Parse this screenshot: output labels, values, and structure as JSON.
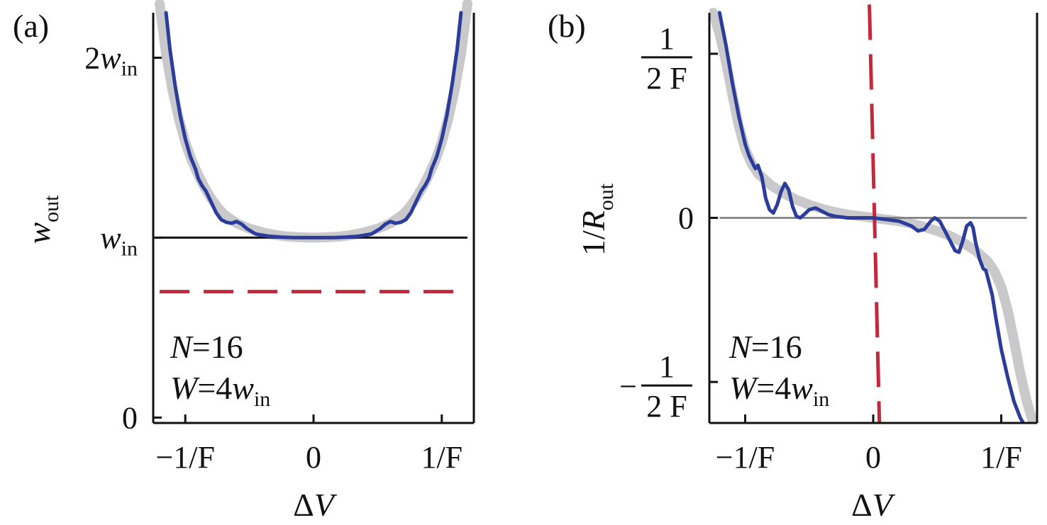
{
  "colors": {
    "fit_curve": "#2b3c9b",
    "smooth_curve": "#c3c3c7",
    "dashed_line": "#c3283d",
    "reference_line": "#111111",
    "reference_line_b": "#777777",
    "axes": "#111111"
  },
  "panels": {
    "a": {
      "label": "(a)",
      "annotation": {
        "n_label": "N=16",
        "w_label": "W=4w_in"
      }
    },
    "b": {
      "label": "(b)",
      "annotation": {
        "n_label": "N=16",
        "w_label": "W=4w_in"
      }
    }
  },
  "chart_data": [
    {
      "type": "line",
      "panel": "(a)",
      "xlabel": "ΔV",
      "ylabel": "w_out",
      "x_units": "1/F",
      "y_units": "w_in",
      "xlim": [
        -1.25,
        1.25
      ],
      "ylim": [
        -0.03,
        2.25
      ],
      "x_ticks": [
        {
          "value": -1,
          "label": "−1/F"
        },
        {
          "value": 0,
          "label": "0"
        },
        {
          "value": 1,
          "label": "1/F"
        }
      ],
      "y_ticks": [
        {
          "value": 0,
          "label": "0"
        },
        {
          "value": 1,
          "label": "w_in"
        },
        {
          "value": 2,
          "label": "2w_in"
        }
      ],
      "series": [
        {
          "role": "smooth-band",
          "x": [
            -1.2,
            -1.15,
            -1.1,
            -1.05,
            -1.0,
            -0.95,
            -0.9,
            -0.85,
            -0.8,
            -0.75,
            -0.7,
            -0.6,
            -0.5,
            -0.4,
            -0.3,
            -0.2,
            -0.1,
            0,
            0.1,
            0.2,
            0.3,
            0.4,
            0.5,
            0.6,
            0.7,
            0.75,
            0.8,
            0.85,
            0.9,
            0.95,
            1.0,
            1.05,
            1.1,
            1.15,
            1.2
          ],
          "y": [
            2.3,
            2.02,
            1.82,
            1.66,
            1.53,
            1.43,
            1.35,
            1.28,
            1.22,
            1.17,
            1.13,
            1.08,
            1.05,
            1.03,
            1.015,
            1.006,
            1.002,
            1.0,
            1.002,
            1.006,
            1.015,
            1.03,
            1.05,
            1.08,
            1.13,
            1.17,
            1.22,
            1.28,
            1.35,
            1.43,
            1.53,
            1.66,
            1.82,
            2.02,
            2.3
          ]
        },
        {
          "role": "oscillating-curve",
          "x": [
            -1.15,
            -1.12,
            -1.08,
            -1.04,
            -1.0,
            -0.96,
            -0.92,
            -0.9,
            -0.87,
            -0.84,
            -0.8,
            -0.76,
            -0.72,
            -0.68,
            -0.64,
            -0.6,
            -0.56,
            -0.52,
            -0.45,
            -0.35,
            -0.25,
            -0.15,
            0,
            0.15,
            0.25,
            0.35,
            0.45,
            0.52,
            0.56,
            0.6,
            0.64,
            0.68,
            0.72,
            0.76,
            0.8,
            0.84,
            0.87,
            0.9,
            0.92,
            0.96,
            1.0,
            1.04,
            1.08,
            1.12,
            1.15
          ],
          "y": [
            2.25,
            2.05,
            1.85,
            1.68,
            1.55,
            1.45,
            1.38,
            1.33,
            1.29,
            1.26,
            1.2,
            1.14,
            1.1,
            1.085,
            1.08,
            1.09,
            1.075,
            1.05,
            1.02,
            1.008,
            1.003,
            1.0,
            1.0,
            1.0,
            1.003,
            1.008,
            1.02,
            1.05,
            1.075,
            1.09,
            1.08,
            1.085,
            1.1,
            1.14,
            1.2,
            1.26,
            1.29,
            1.33,
            1.38,
            1.45,
            1.55,
            1.68,
            1.85,
            2.05,
            2.25
          ]
        },
        {
          "role": "reference-line",
          "x": [
            -1.2,
            1.2
          ],
          "y": [
            1,
            1
          ]
        },
        {
          "role": "dashed-line",
          "x": [
            -1.2,
            1.2
          ],
          "y": [
            0.7,
            0.7
          ]
        }
      ],
      "annotation": "N=16, W=4w_in"
    },
    {
      "type": "line",
      "panel": "(b)",
      "xlabel": "ΔV",
      "ylabel": "1/R_out",
      "x_units": "1/F",
      "y_units": "1/(2F)",
      "xlim": [
        -1.28,
        1.28
      ],
      "ylim": [
        -1.25,
        1.25
      ],
      "x_ticks": [
        {
          "value": -1,
          "label": "−1/F"
        },
        {
          "value": 0,
          "label": "0"
        },
        {
          "value": 1,
          "label": "1/F"
        }
      ],
      "y_ticks": [
        {
          "value": 1,
          "label": "1/(2 F)"
        },
        {
          "value": 0,
          "label": "0"
        },
        {
          "value": -1,
          "label": "−1/(2 F)"
        }
      ],
      "series": [
        {
          "role": "smooth-band",
          "x": [
            -1.25,
            -1.2,
            -1.15,
            -1.1,
            -1.05,
            -1.0,
            -0.95,
            -0.9,
            -0.8,
            -0.7,
            -0.6,
            -0.5,
            -0.4,
            -0.3,
            -0.2,
            -0.1,
            0,
            0.1,
            0.2,
            0.3,
            0.4,
            0.5,
            0.6,
            0.7,
            0.8,
            0.9,
            0.95,
            1.0,
            1.05,
            1.1,
            1.15,
            1.2,
            1.25
          ],
          "y": [
            1.25,
            1.12,
            0.95,
            0.75,
            0.56,
            0.42,
            0.33,
            0.27,
            0.2,
            0.15,
            0.11,
            0.08,
            0.055,
            0.035,
            0.02,
            0.01,
            0,
            -0.01,
            -0.02,
            -0.035,
            -0.055,
            -0.08,
            -0.11,
            -0.15,
            -0.2,
            -0.27,
            -0.33,
            -0.42,
            -0.56,
            -0.75,
            -0.95,
            -1.12,
            -1.25
          ]
        },
        {
          "role": "oscillating-curve",
          "x": [
            -1.2,
            -1.15,
            -1.1,
            -1.05,
            -1.0,
            -0.97,
            -0.94,
            -0.92,
            -0.9,
            -0.87,
            -0.84,
            -0.81,
            -0.78,
            -0.75,
            -0.72,
            -0.69,
            -0.66,
            -0.63,
            -0.6,
            -0.57,
            -0.54,
            -0.5,
            -0.45,
            -0.4,
            -0.35,
            -0.3,
            -0.25,
            -0.2,
            -0.1,
            0,
            0.1,
            0.2,
            0.3,
            0.35,
            0.4,
            0.45,
            0.48,
            0.52,
            0.56,
            0.6,
            0.64,
            0.67,
            0.7,
            0.73,
            0.76,
            0.78,
            0.8,
            0.83,
            0.86,
            0.88,
            0.9,
            0.93,
            0.96,
            1.0,
            1.05,
            1.1,
            1.15,
            1.18
          ],
          "y": [
            1.25,
            1.05,
            0.82,
            0.62,
            0.45,
            0.38,
            0.33,
            0.3,
            0.32,
            0.25,
            0.12,
            0.05,
            0.03,
            0.08,
            0.16,
            0.21,
            0.17,
            0.07,
            0.01,
            0.0,
            0.02,
            0.05,
            0.06,
            0.04,
            0.02,
            0.01,
            0.005,
            0.0,
            0.0,
            0.0,
            -0.01,
            -0.02,
            -0.05,
            -0.08,
            -0.07,
            -0.02,
            0.0,
            -0.02,
            -0.08,
            -0.14,
            -0.2,
            -0.21,
            -0.14,
            -0.05,
            -0.03,
            -0.06,
            -0.15,
            -0.25,
            -0.31,
            -0.32,
            -0.38,
            -0.47,
            -0.62,
            -0.8,
            -0.97,
            -1.12,
            -1.22,
            -1.26
          ]
        },
        {
          "role": "reference-line",
          "x": [
            -1.2,
            1.2
          ],
          "y": [
            0,
            0
          ]
        },
        {
          "role": "dashed-line",
          "x": [
            -0.03,
            0.05
          ],
          "y": [
            1.3,
            -1.3
          ]
        }
      ],
      "annotation": "N=16, W=4w_in"
    }
  ]
}
